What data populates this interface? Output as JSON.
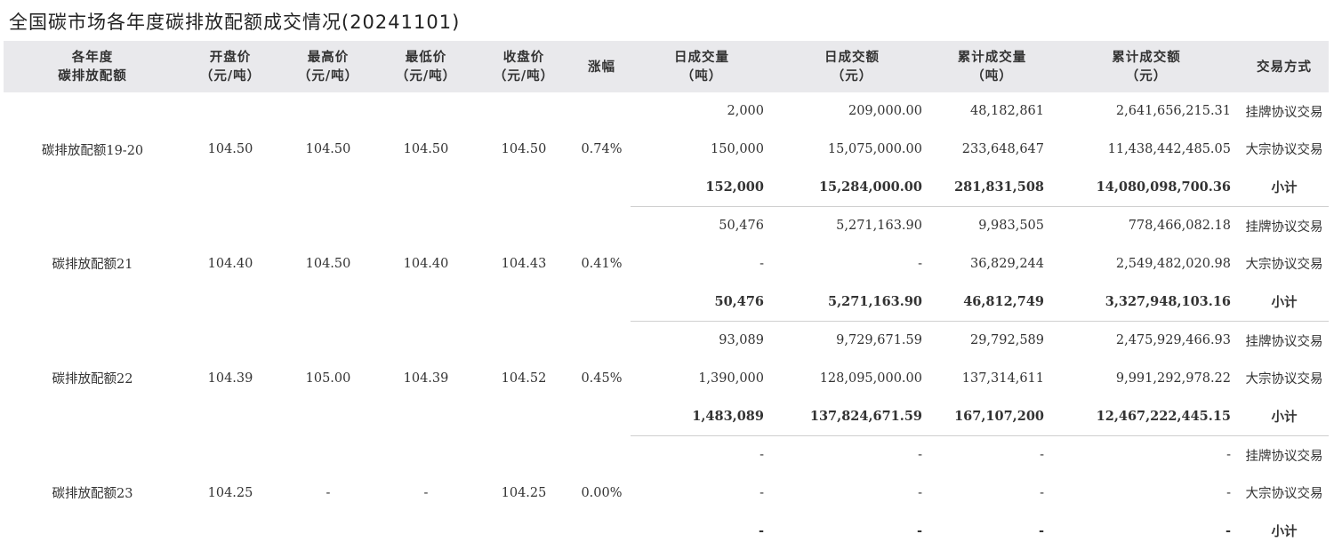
{
  "title": "全国碳市场各年度碳排放配额成交情况(20241101)",
  "headers": [
    [
      "各年度",
      "碳排放配额"
    ],
    [
      "开盘价",
      "（元/吨）"
    ],
    [
      "最高价",
      "（元/吨）"
    ],
    [
      "最低价",
      "（元/吨）"
    ],
    [
      "收盘价",
      "（元/吨）"
    ],
    [
      "涨幅",
      ""
    ],
    [
      "日成交量",
      "（吨）"
    ],
    [
      "日成交额",
      "（元）"
    ],
    [
      "累计成交量",
      "（吨）"
    ],
    [
      "累计成交额",
      "（元）"
    ],
    [
      "交易方式",
      ""
    ]
  ],
  "groups": [
    {
      "name": "碳排放配额19-20",
      "open": "104.50",
      "high": "104.50",
      "low": "104.50",
      "close": "104.50",
      "change": "0.74%",
      "rows": [
        {
          "vol": "2,000",
          "amt": "209,000.00",
          "cvol": "48,182,861",
          "camt": "2,641,656,215.31",
          "mode": "挂牌协议交易"
        },
        {
          "vol": "150,000",
          "amt": "15,075,000.00",
          "cvol": "233,648,647",
          "camt": "11,438,442,485.05",
          "mode": "大宗协议交易"
        },
        {
          "vol": "152,000",
          "amt": "15,284,000.00",
          "cvol": "281,831,508",
          "camt": "14,080,098,700.36",
          "mode": "小计"
        }
      ]
    },
    {
      "name": "碳排放配额21",
      "open": "104.40",
      "high": "104.50",
      "low": "104.40",
      "close": "104.43",
      "change": "0.41%",
      "rows": [
        {
          "vol": "50,476",
          "amt": "5,271,163.90",
          "cvol": "9,983,505",
          "camt": "778,466,082.18",
          "mode": "挂牌协议交易"
        },
        {
          "vol": "-",
          "amt": "-",
          "cvol": "36,829,244",
          "camt": "2,549,482,020.98",
          "mode": "大宗协议交易"
        },
        {
          "vol": "50,476",
          "amt": "5,271,163.90",
          "cvol": "46,812,749",
          "camt": "3,327,948,103.16",
          "mode": "小计"
        }
      ]
    },
    {
      "name": "碳排放配额22",
      "open": "104.39",
      "high": "105.00",
      "low": "104.39",
      "close": "104.52",
      "change": "0.45%",
      "rows": [
        {
          "vol": "93,089",
          "amt": "9,729,671.59",
          "cvol": "29,792,589",
          "camt": "2,475,929,466.93",
          "mode": "挂牌协议交易"
        },
        {
          "vol": "1,390,000",
          "amt": "128,095,000.00",
          "cvol": "137,314,611",
          "camt": "9,991,292,978.22",
          "mode": "大宗协议交易"
        },
        {
          "vol": "1,483,089",
          "amt": "137,824,671.59",
          "cvol": "167,107,200",
          "camt": "12,467,222,445.15",
          "mode": "小计"
        }
      ]
    },
    {
      "name": "碳排放配额23",
      "open": "104.25",
      "high": "-",
      "low": "-",
      "close": "104.25",
      "change": "0.00%",
      "rows": [
        {
          "vol": "-",
          "amt": "-",
          "cvol": "-",
          "camt": "-",
          "mode": "挂牌协议交易"
        },
        {
          "vol": "-",
          "amt": "-",
          "cvol": "-",
          "camt": "-",
          "mode": "大宗协议交易"
        },
        {
          "vol": "-",
          "amt": "-",
          "cvol": "-",
          "camt": "-",
          "mode": "小计"
        }
      ]
    }
  ]
}
